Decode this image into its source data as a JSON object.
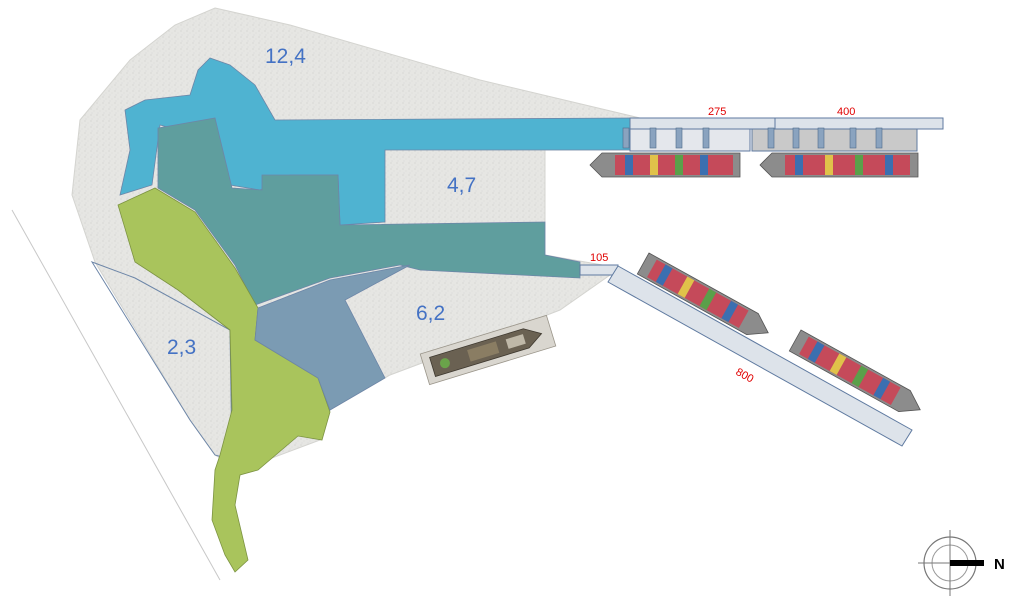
{
  "map": {
    "area_labels": {
      "north_zone": "12,4",
      "inner_basin": "4,7",
      "south_terminal": "6,2",
      "west_strip": "2,3"
    },
    "berth_lengths": {
      "quay_a": "275",
      "quay_b": "400",
      "quay_c": "105",
      "quay_d": "800"
    },
    "compass": {
      "letter": "N"
    },
    "colors": {
      "land": "#e6e6e3",
      "zone_blue": "#4fb3d1",
      "zone_teal": "#5f9e9e",
      "zone_green": "#a9c45c",
      "zone_slate": "#7b9bb3",
      "quay": "#dde3ea",
      "label_blue": "#4472c4",
      "label_red": "#e00000"
    }
  }
}
